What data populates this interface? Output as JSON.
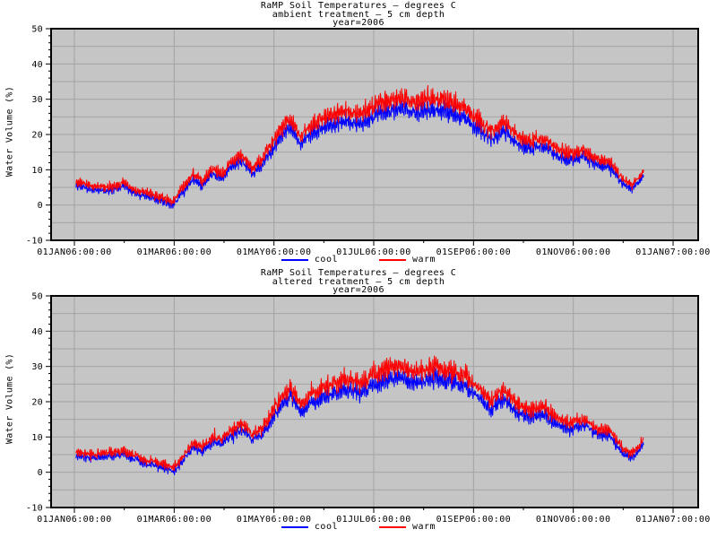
{
  "page": {
    "background": "#ffffff"
  },
  "colors": {
    "plot_background": "#c5c5c5",
    "gridline": "#a3a3a3",
    "frame": "#000000",
    "cool_series": "#0000ff",
    "warm_series": "#ff0000",
    "text": "#000000"
  },
  "charts": [
    {
      "title": "RaMP Soil Temperatures — degrees C",
      "subtitle": "ambient treatment — 5 cm depth",
      "note": "year=2006",
      "ylabel": "Water Volume (%)",
      "legend": [
        {
          "label": "cool",
          "color": "#0000ff"
        },
        {
          "label": "warm",
          "color": "#ff0000"
        }
      ]
    },
    {
      "title": "RaMP Soil Temperatures — degrees C",
      "subtitle": "altered treatment — 5 cm depth",
      "note": "year=2006",
      "ylabel": "Water Volume (%)",
      "legend": [
        {
          "label": "cool",
          "color": "#0000ff"
        },
        {
          "label": "warm",
          "color": "#ff0000"
        }
      ]
    }
  ],
  "chart_data": [
    {
      "type": "line",
      "title": "RaMP Soil Temperatures — degrees C",
      "subtitle": "ambient treatment — 5 cm depth",
      "caption": "year=2006",
      "xlabel": "",
      "ylabel": "Water Volume (%)",
      "ylim": [
        -10,
        50
      ],
      "yticks": [
        50,
        40,
        30,
        20,
        10,
        0,
        -10
      ],
      "ytick_labels": [
        "50",
        "40",
        "30",
        "20",
        "10",
        "0",
        "-10"
      ],
      "grid": true,
      "gridline_step_y": 5,
      "xtick_labels": [
        "01JAN06:00:00",
        "01MAR06:00:00",
        "01MAY06:00:00",
        "01JUL06:00:00",
        "01SEP06:00:00",
        "01NOV06:00:00",
        "01JAN07:00:00"
      ],
      "x_span_days": [
        0,
        365
      ],
      "legend_position": "bottom",
      "series_meta": [
        {
          "name": "cool",
          "color": "#0000ff"
        },
        {
          "name": "warm",
          "color": "#ff0000"
        }
      ],
      "anchors": {
        "comment": "approximate seasonal mean values (noisy hourly traces in plot), day-of-year 2006",
        "days": [
          1,
          10,
          20,
          30,
          38,
          46,
          54,
          60,
          66,
          72,
          78,
          84,
          90,
          96,
          102,
          108,
          114,
          120,
          126,
          132,
          138,
          144,
          150,
          158,
          166,
          174,
          182,
          190,
          198,
          206,
          214,
          222,
          230,
          238,
          246,
          254,
          262,
          270,
          278,
          286,
          294,
          302,
          310,
          318,
          326,
          334,
          340,
          347
        ],
        "cool": [
          5.5,
          4.5,
          4.0,
          5.5,
          3.0,
          2.5,
          1.0,
          0.0,
          3.5,
          7.5,
          5.5,
          9.0,
          7.5,
          11.0,
          12.5,
          9.0,
          11.0,
          15.0,
          19.5,
          22.0,
          17.5,
          20.0,
          21.5,
          23.0,
          24.0,
          23.0,
          25.0,
          26.5,
          27.5,
          26.0,
          26.5,
          27.5,
          26.0,
          24.5,
          22.0,
          18.5,
          21.0,
          17.5,
          16.0,
          17.0,
          14.0,
          12.5,
          14.0,
          11.5,
          11.0,
          6.0,
          4.5,
          8.5
        ],
        "warm": [
          6.5,
          5.5,
          5.0,
          6.5,
          4.0,
          3.5,
          2.0,
          1.0,
          4.8,
          8.8,
          6.8,
          10.3,
          8.8,
          12.5,
          14.0,
          10.5,
          12.5,
          17.2,
          21.7,
          24.2,
          19.7,
          22.2,
          24.3,
          25.8,
          26.8,
          25.8,
          28.0,
          29.5,
          30.5,
          29.0,
          29.5,
          30.5,
          29.0,
          27.5,
          24.5,
          21.0,
          23.5,
          20.0,
          18.0,
          19.0,
          16.0,
          14.5,
          15.5,
          13.0,
          12.5,
          7.5,
          5.7,
          9.7
        ]
      },
      "seed": 11
    },
    {
      "type": "line",
      "title": "RaMP Soil Temperatures — degrees C",
      "subtitle": "altered treatment — 5 cm depth",
      "caption": "year=2006",
      "xlabel": "",
      "ylabel": "Water Volume (%)",
      "ylim": [
        -10,
        50
      ],
      "yticks": [
        50,
        40,
        30,
        20,
        10,
        0,
        -10
      ],
      "ytick_labels": [
        "50",
        "40",
        "30",
        "20",
        "10",
        "0",
        "-10"
      ],
      "grid": true,
      "gridline_step_y": 5,
      "xtick_labels": [
        "01JAN06:00:00",
        "01MAR06:00:00",
        "01MAY06:00:00",
        "01JUL06:00:00",
        "01SEP06:00:00",
        "01NOV06:00:00",
        "01JAN07:00:00"
      ],
      "x_span_days": [
        0,
        365
      ],
      "legend_position": "bottom",
      "series_meta": [
        {
          "name": "cool",
          "color": "#0000ff"
        },
        {
          "name": "warm",
          "color": "#ff0000"
        }
      ],
      "anchors": {
        "comment": "approximate seasonal mean values (noisy hourly traces in plot), day-of-year 2006",
        "days": [
          1,
          10,
          20,
          30,
          38,
          46,
          54,
          60,
          66,
          72,
          78,
          84,
          90,
          96,
          102,
          108,
          114,
          120,
          126,
          132,
          138,
          144,
          150,
          158,
          166,
          174,
          182,
          190,
          198,
          206,
          214,
          222,
          230,
          238,
          246,
          254,
          262,
          270,
          278,
          286,
          294,
          302,
          310,
          318,
          326,
          334,
          340,
          347
        ],
        "cool": [
          5.0,
          4.0,
          4.5,
          5.0,
          3.5,
          2.0,
          1.5,
          0.0,
          3.0,
          7.0,
          6.0,
          8.5,
          8.0,
          10.5,
          12.0,
          9.5,
          10.5,
          14.5,
          19.0,
          21.5,
          17.0,
          19.5,
          21.0,
          22.5,
          23.5,
          22.5,
          24.5,
          26.0,
          27.0,
          25.5,
          26.0,
          27.0,
          25.5,
          24.0,
          21.5,
          18.0,
          20.5,
          17.0,
          15.5,
          16.5,
          13.5,
          12.0,
          13.5,
          11.0,
          10.5,
          5.5,
          4.0,
          8.0
        ],
        "warm": [
          6.0,
          5.0,
          5.5,
          6.0,
          4.5,
          3.0,
          2.5,
          1.0,
          4.3,
          8.3,
          7.3,
          9.8,
          9.3,
          12.0,
          13.5,
          11.0,
          12.0,
          16.7,
          21.2,
          23.7,
          19.2,
          21.7,
          23.8,
          25.3,
          26.3,
          25.3,
          27.5,
          29.0,
          30.0,
          28.5,
          29.0,
          30.0,
          28.5,
          27.0,
          24.0,
          20.5,
          23.0,
          19.5,
          17.5,
          18.5,
          15.5,
          14.0,
          15.0,
          12.5,
          12.0,
          7.0,
          5.2,
          9.2
        ]
      },
      "seed": 77
    }
  ]
}
